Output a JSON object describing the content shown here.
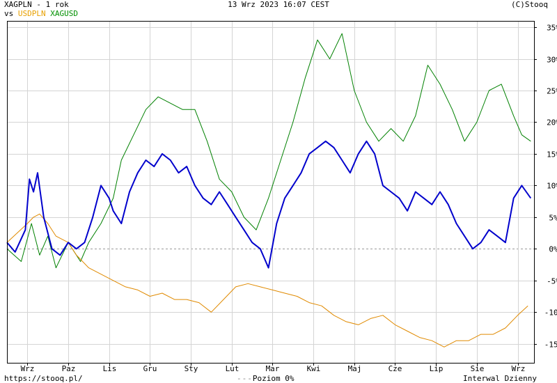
{
  "header": {
    "title": "XAGPLN - 1 rok",
    "vs_label": "vs",
    "compare_1": "USDPLN",
    "compare_2": "XAGUSD",
    "timestamp": "13 Wrz 2023 16:07 CEST",
    "brand": "(C)Stooq"
  },
  "footer": {
    "url": "https://stooq.pl/",
    "zero_label": "Poziom 0%",
    "interval": "Interwal Dzienny"
  },
  "colors": {
    "main": "#0000cc",
    "usdpln": "#e08a00",
    "xagusd": "#008000",
    "compare_1_label": "#e8a000",
    "compare_2_label": "#009000",
    "grid": "#d4d4d4",
    "zero_line": "#9a9a9a"
  },
  "chart_data": {
    "type": "line",
    "y_unit": "%",
    "ylim": [
      -18,
      36
    ],
    "y_ticks": [
      35,
      30,
      25,
      20,
      15,
      10,
      5,
      0,
      -5,
      -10,
      -15
    ],
    "y_tick_labels": [
      "35%",
      "30%",
      "25%",
      "20%",
      "15%",
      "10%",
      "5%",
      "0%",
      "-5%",
      "-10%",
      "-15%"
    ],
    "x_tick_labels": [
      "Wrz",
      "Paz",
      "Lis",
      "Gru",
      "Sty",
      "Lut",
      "Mar",
      "Kwi",
      "Maj",
      "Cze",
      "Lip",
      "Sie",
      "Wrz"
    ],
    "x_tick_positions": [
      0.5,
      1.5,
      2.5,
      3.5,
      4.5,
      5.5,
      6.5,
      7.5,
      8.5,
      9.5,
      10.5,
      11.5,
      12.5
    ],
    "xlim": [
      0,
      12.9
    ],
    "grid": true,
    "legend": "top-left",
    "series": [
      {
        "name": "XAGPLN",
        "color": "#0000cc",
        "x": [
          0,
          0.2,
          0.45,
          0.55,
          0.65,
          0.75,
          0.9,
          1.1,
          1.3,
          1.5,
          1.7,
          1.9,
          2.1,
          2.3,
          2.5,
          2.6,
          2.8,
          3.0,
          3.2,
          3.4,
          3.6,
          3.8,
          4.0,
          4.2,
          4.4,
          4.6,
          4.8,
          5.0,
          5.2,
          5.4,
          5.6,
          5.8,
          6.0,
          6.2,
          6.4,
          6.6,
          6.8,
          7.0,
          7.2,
          7.4,
          7.6,
          7.8,
          8.0,
          8.2,
          8.4,
          8.6,
          8.8,
          9.0,
          9.2,
          9.4,
          9.6,
          9.8,
          10.0,
          10.2,
          10.4,
          10.6,
          10.8,
          11.0,
          11.2,
          11.4,
          11.6,
          11.8,
          12.0,
          12.2,
          12.4,
          12.6,
          12.82
        ],
        "y": [
          1,
          -0.5,
          3,
          11,
          9,
          12,
          5,
          0,
          -1,
          1,
          0,
          1,
          5,
          10,
          8,
          6,
          4,
          9,
          12,
          14,
          13,
          15,
          14,
          12,
          13,
          10,
          8,
          7,
          9,
          7,
          5,
          3,
          1,
          0,
          -3,
          4,
          8,
          10,
          12,
          15,
          16,
          17,
          16,
          14,
          12,
          15,
          17,
          15,
          10,
          9,
          8,
          6,
          9,
          8,
          7,
          9,
          7,
          4,
          2,
          0,
          1,
          3,
          2,
          1,
          8,
          10,
          8
        ]
      },
      {
        "name": "USDPLN",
        "color": "#e08a00",
        "x": [
          0,
          0.5,
          0.65,
          0.8,
          1.0,
          1.2,
          1.5,
          1.7,
          2.0,
          2.3,
          2.6,
          2.9,
          3.2,
          3.5,
          3.8,
          4.1,
          4.4,
          4.7,
          5.0,
          5.3,
          5.6,
          5.9,
          6.2,
          6.5,
          6.8,
          7.1,
          7.4,
          7.7,
          8.0,
          8.3,
          8.6,
          8.9,
          9.2,
          9.5,
          9.8,
          10.1,
          10.4,
          10.7,
          11.0,
          11.3,
          11.6,
          11.9,
          12.2,
          12.5,
          12.75
        ],
        "y": [
          1,
          4,
          5,
          5.5,
          4,
          2,
          1,
          -1,
          -3,
          -4,
          -5,
          -6,
          -6.5,
          -7.5,
          -7,
          -8,
          -8,
          -8.5,
          -10,
          -8,
          -6,
          -5.5,
          -6,
          -6.5,
          -7,
          -7.5,
          -8.5,
          -9,
          -10.5,
          -11.5,
          -12,
          -11,
          -10.5,
          -12,
          -13,
          -14,
          -14.5,
          -15.5,
          -14.5,
          -14.5,
          -13.5,
          -13.5,
          -12.5,
          -10.5,
          -9
        ]
      },
      {
        "name": "XAGUSD",
        "color": "#008000",
        "x": [
          0,
          0.35,
          0.6,
          0.8,
          1.0,
          1.2,
          1.5,
          1.8,
          2.0,
          2.3,
          2.6,
          2.8,
          3.1,
          3.4,
          3.7,
          4.0,
          4.3,
          4.6,
          4.9,
          5.2,
          5.5,
          5.8,
          6.1,
          6.4,
          6.7,
          7.0,
          7.3,
          7.6,
          7.9,
          8.2,
          8.5,
          8.8,
          9.1,
          9.4,
          9.7,
          10.0,
          10.3,
          10.6,
          10.9,
          11.2,
          11.5,
          11.8,
          12.1,
          12.4,
          12.6,
          12.82
        ],
        "y": [
          0,
          -2,
          4,
          -1,
          2,
          -3,
          1,
          -2,
          1,
          4,
          8,
          14,
          18,
          22,
          24,
          23,
          22,
          22,
          17,
          11,
          9,
          5,
          3,
          8,
          14,
          20,
          27,
          33,
          30,
          34,
          25,
          20,
          17,
          19,
          17,
          21,
          29,
          26,
          22,
          17,
          20,
          25,
          26,
          21,
          18,
          17
        ]
      }
    ]
  }
}
